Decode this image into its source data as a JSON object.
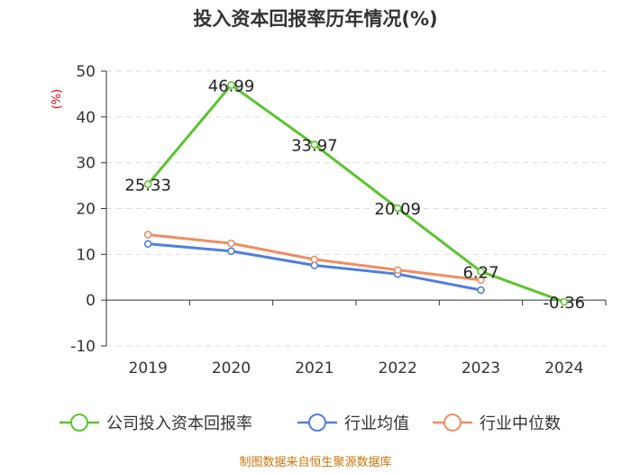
{
  "chart_data": {
    "type": "line",
    "title": "投入资本回报率历年情况(%)",
    "ylabel": "(%)",
    "xlabel": "",
    "categories": [
      "2019",
      "2020",
      "2021",
      "2022",
      "2023",
      "2024"
    ],
    "ylim": [
      -10,
      50
    ],
    "yticks": [
      50,
      40,
      30,
      20,
      10,
      0,
      -10
    ],
    "grid": true,
    "legend_position": "bottom",
    "series": [
      {
        "name": "公司投入资本回报率",
        "color": "#5cc42e",
        "values": [
          25.33,
          46.99,
          33.97,
          20.09,
          6.27,
          -0.36
        ],
        "labels": [
          "25.33",
          "46.99",
          "33.97",
          "20.09",
          "6.27",
          "-0.36"
        ]
      },
      {
        "name": "行业均值",
        "color": "#4f7fde",
        "values": [
          12.3,
          10.7,
          7.6,
          5.7,
          2.2,
          null
        ]
      },
      {
        "name": "行业中位数",
        "color": "#f08d5f",
        "values": [
          14.3,
          12.4,
          8.9,
          6.6,
          4.4,
          null
        ]
      }
    ]
  },
  "source": "制图数据来自恒生聚源数据库"
}
